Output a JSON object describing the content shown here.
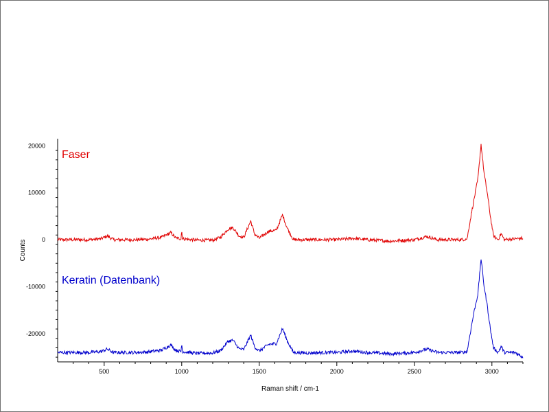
{
  "chart_data": {
    "type": "line",
    "xlabel": "Raman shift / cm-1",
    "ylabel": "Counts",
    "xlim": [
      200,
      3200
    ],
    "ylim": [
      -26000,
      21500
    ],
    "x_ticks": [
      500,
      1000,
      1500,
      2000,
      2500,
      3000
    ],
    "y_ticks": [
      20000,
      10000,
      0,
      -10000,
      -20000
    ],
    "y_tick_labels": [
      "20000",
      "10000",
      "0",
      "-10000",
      "-20000"
    ],
    "grid": false,
    "series": [
      {
        "name": "Faser",
        "color": "#e00000",
        "baseline": 0,
        "points": [
          [
            200,
            0
          ],
          [
            400,
            0
          ],
          [
            480,
            200
          ],
          [
            520,
            800
          ],
          [
            560,
            0
          ],
          [
            700,
            0
          ],
          [
            780,
            100
          ],
          [
            870,
            500
          ],
          [
            930,
            1500
          ],
          [
            960,
            400
          ],
          [
            995,
            200
          ],
          [
            1000,
            2000
          ],
          [
            1005,
            200
          ],
          [
            1100,
            -100
          ],
          [
            1200,
            -100
          ],
          [
            1250,
            500
          ],
          [
            1300,
            2300
          ],
          [
            1330,
            2600
          ],
          [
            1370,
            800
          ],
          [
            1400,
            500
          ],
          [
            1445,
            4000
          ],
          [
            1470,
            1200
          ],
          [
            1500,
            300
          ],
          [
            1560,
            1800
          ],
          [
            1610,
            2000
          ],
          [
            1650,
            5300
          ],
          [
            1680,
            2500
          ],
          [
            1720,
            0
          ],
          [
            1800,
            0
          ],
          [
            2000,
            0
          ],
          [
            2100,
            300
          ],
          [
            2200,
            0
          ],
          [
            2350,
            -300
          ],
          [
            2500,
            0
          ],
          [
            2580,
            700
          ],
          [
            2650,
            0
          ],
          [
            2800,
            0
          ],
          [
            2840,
            200
          ],
          [
            2870,
            6000
          ],
          [
            2890,
            9500
          ],
          [
            2910,
            13000
          ],
          [
            2930,
            20300
          ],
          [
            2950,
            14000
          ],
          [
            2970,
            10000
          ],
          [
            2990,
            5000
          ],
          [
            3010,
            800
          ],
          [
            3040,
            0
          ],
          [
            3060,
            1300
          ],
          [
            3080,
            0
          ],
          [
            3150,
            200
          ],
          [
            3200,
            300
          ]
        ]
      },
      {
        "name": "Keratin (Datenbank)",
        "color": "#0000cc",
        "baseline": -24000,
        "points": [
          [
            200,
            -24000
          ],
          [
            400,
            -24000
          ],
          [
            480,
            -23800
          ],
          [
            520,
            -23300
          ],
          [
            560,
            -24000
          ],
          [
            700,
            -24000
          ],
          [
            780,
            -23900
          ],
          [
            870,
            -23500
          ],
          [
            930,
            -22400
          ],
          [
            960,
            -23500
          ],
          [
            995,
            -23800
          ],
          [
            1000,
            -22100
          ],
          [
            1005,
            -23800
          ],
          [
            1100,
            -24200
          ],
          [
            1200,
            -24100
          ],
          [
            1250,
            -23600
          ],
          [
            1300,
            -21600
          ],
          [
            1330,
            -21400
          ],
          [
            1370,
            -23200
          ],
          [
            1400,
            -23400
          ],
          [
            1445,
            -20300
          ],
          [
            1470,
            -22800
          ],
          [
            1500,
            -23700
          ],
          [
            1560,
            -22300
          ],
          [
            1610,
            -22100
          ],
          [
            1650,
            -18900
          ],
          [
            1680,
            -21500
          ],
          [
            1720,
            -24000
          ],
          [
            1800,
            -24100
          ],
          [
            2000,
            -24000
          ],
          [
            2100,
            -23700
          ],
          [
            2200,
            -24000
          ],
          [
            2350,
            -24300
          ],
          [
            2500,
            -24000
          ],
          [
            2580,
            -23300
          ],
          [
            2650,
            -24000
          ],
          [
            2800,
            -24000
          ],
          [
            2840,
            -23800
          ],
          [
            2870,
            -18000
          ],
          [
            2890,
            -14500
          ],
          [
            2910,
            -11500
          ],
          [
            2930,
            -4000
          ],
          [
            2950,
            -10000
          ],
          [
            2970,
            -14000
          ],
          [
            2990,
            -19000
          ],
          [
            3010,
            -23000
          ],
          [
            3040,
            -24000
          ],
          [
            3060,
            -22700
          ],
          [
            3080,
            -24000
          ],
          [
            3150,
            -24000
          ],
          [
            3200,
            -25000
          ]
        ]
      }
    ]
  }
}
